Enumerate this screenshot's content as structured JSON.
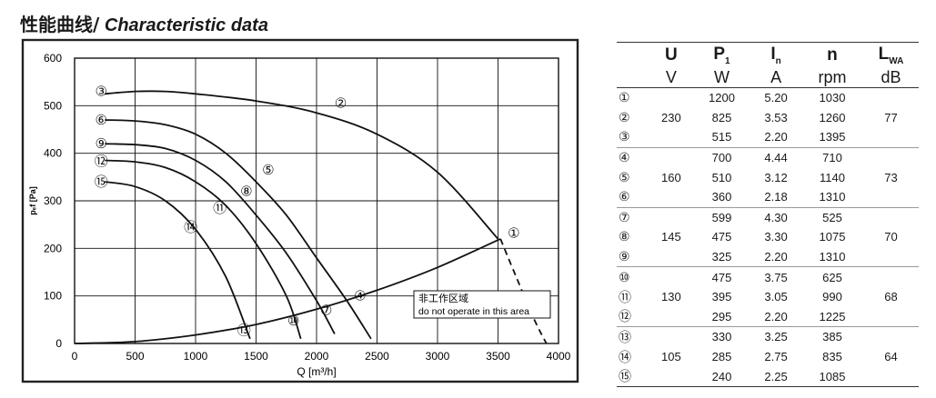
{
  "title": {
    "zh": "性能曲线/",
    "en": "Characteristic data"
  },
  "chart_data": {
    "type": "line",
    "xlabel": "Q [m³/h]",
    "ylabel": "pₑf [Pa]",
    "xlim": [
      0,
      4000
    ],
    "ylim": [
      0,
      600
    ],
    "x_ticks": [
      "0",
      "500",
      "1000",
      "1500",
      "2000",
      "2500",
      "3000",
      "3500",
      "4000"
    ],
    "y_ticks": [
      "0",
      "100",
      "200",
      "300",
      "400",
      "500",
      "600"
    ],
    "grid": true,
    "series": [
      {
        "name": "③",
        "x": [
          250,
          500,
          750,
          1000,
          1500,
          2000,
          2500,
          3000,
          3500
        ],
        "y": [
          525,
          530,
          530,
          525,
          510,
          485,
          440,
          360,
          220
        ]
      },
      {
        "name": "⑥",
        "x": [
          250,
          500,
          750,
          1000,
          1250,
          1500,
          1750,
          2000,
          2250,
          2450
        ],
        "y": [
          470,
          468,
          460,
          440,
          400,
          340,
          270,
          180,
          90,
          10
        ]
      },
      {
        "name": "⑨",
        "x": [
          250,
          500,
          750,
          1000,
          1250,
          1500,
          1750,
          2000,
          2150
        ],
        "y": [
          420,
          418,
          410,
          385,
          340,
          270,
          190,
          90,
          20
        ]
      },
      {
        "name": "⑫",
        "x": [
          250,
          500,
          750,
          1000,
          1250,
          1500,
          1750,
          1870
        ],
        "y": [
          385,
          382,
          370,
          340,
          290,
          210,
          100,
          10
        ]
      },
      {
        "name": "⑮",
        "x": [
          250,
          500,
          750,
          1000,
          1250,
          1450
        ],
        "y": [
          340,
          330,
          300,
          240,
          140,
          10
        ]
      }
    ],
    "system_curve": {
      "x": [
        0,
        500,
        1000,
        1500,
        2000,
        2500,
        3000,
        3520
      ],
      "y": [
        0,
        4,
        18,
        40,
        72,
        112,
        160,
        220
      ]
    },
    "no_operate_boundary": {
      "x": [
        3520,
        3650,
        3800,
        3900
      ],
      "y": [
        220,
        140,
        50,
        0
      ]
    },
    "curve_labels": [
      {
        "text": "③",
        "x": 220,
        "y": 530
      },
      {
        "text": "⑥",
        "x": 220,
        "y": 470
      },
      {
        "text": "⑨",
        "x": 220,
        "y": 420
      },
      {
        "text": "⑫",
        "x": 220,
        "y": 383
      },
      {
        "text": "⑮",
        "x": 220,
        "y": 340
      },
      {
        "text": "②",
        "x": 2200,
        "y": 505
      },
      {
        "text": "⑤",
        "x": 1600,
        "y": 365
      },
      {
        "text": "⑧",
        "x": 1420,
        "y": 320
      },
      {
        "text": "⑪",
        "x": 1200,
        "y": 285
      },
      {
        "text": "⑭",
        "x": 960,
        "y": 245
      },
      {
        "text": "①",
        "x": 3630,
        "y": 232
      },
      {
        "text": "④",
        "x": 2360,
        "y": 100
      },
      {
        "text": "⑦",
        "x": 2080,
        "y": 70
      },
      {
        "text": "⑩",
        "x": 1810,
        "y": 48
      },
      {
        "text": "⑬",
        "x": 1400,
        "y": 28
      }
    ],
    "annotation": {
      "line1": "非工作区域",
      "line2": "do not operate in this area"
    }
  },
  "table": {
    "headers": [
      "U",
      "P1",
      "In",
      "n",
      "LWA"
    ],
    "units": [
      "V",
      "W",
      "A",
      "rpm",
      "dB"
    ],
    "groups": [
      {
        "U": "230",
        "LWA": "77",
        "rows": [
          {
            "idx": "①",
            "P": "1200",
            "I": "5.20",
            "n": "1030"
          },
          {
            "idx": "②",
            "P": "825",
            "I": "3.53",
            "n": "1260"
          },
          {
            "idx": "③",
            "P": "515",
            "I": "2.20",
            "n": "1395"
          }
        ]
      },
      {
        "U": "160",
        "LWA": "73",
        "rows": [
          {
            "idx": "④",
            "P": "700",
            "I": "4.44",
            "n": "710"
          },
          {
            "idx": "⑤",
            "P": "510",
            "I": "3.12",
            "n": "1140"
          },
          {
            "idx": "⑥",
            "P": "360",
            "I": "2.18",
            "n": "1310"
          }
        ]
      },
      {
        "U": "145",
        "LWA": "70",
        "rows": [
          {
            "idx": "⑦",
            "P": "599",
            "I": "4.30",
            "n": "525"
          },
          {
            "idx": "⑧",
            "P": "475",
            "I": "3.30",
            "n": "1075"
          },
          {
            "idx": "⑨",
            "P": "325",
            "I": "2.20",
            "n": "1310"
          }
        ]
      },
      {
        "U": "130",
        "LWA": "68",
        "rows": [
          {
            "idx": "⑩",
            "P": "475",
            "I": "3.75",
            "n": "625"
          },
          {
            "idx": "⑪",
            "P": "395",
            "I": "3.05",
            "n": "990"
          },
          {
            "idx": "⑫",
            "P": "295",
            "I": "2.20",
            "n": "1225"
          }
        ]
      },
      {
        "U": "105",
        "LWA": "64",
        "rows": [
          {
            "idx": "⑬",
            "P": "330",
            "I": "3.25",
            "n": "385"
          },
          {
            "idx": "⑭",
            "P": "285",
            "I": "2.75",
            "n": "835"
          },
          {
            "idx": "⑮",
            "P": "240",
            "I": "2.25",
            "n": "1085"
          }
        ]
      }
    ]
  }
}
